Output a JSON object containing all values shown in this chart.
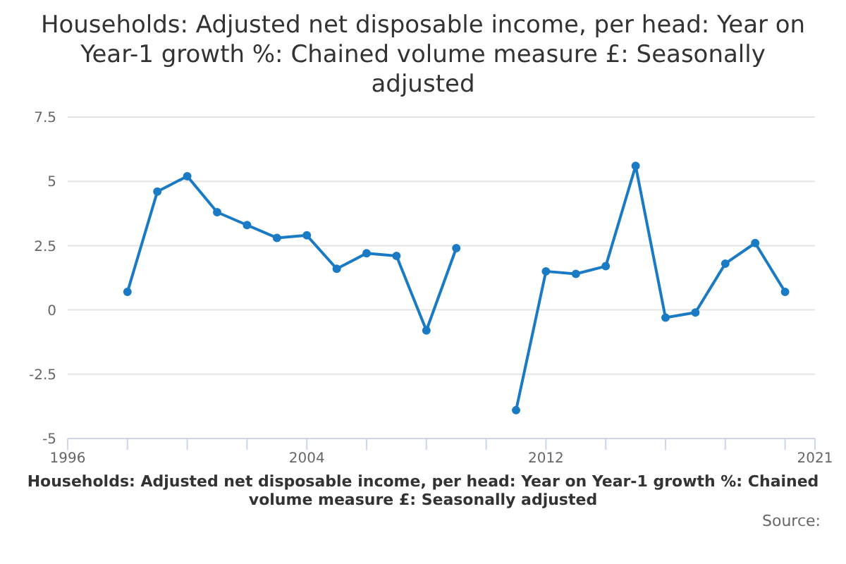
{
  "chart_data": {
    "type": "line",
    "title": "Households: Adjusted net disposable income, per head: Year on Year-1 growth %: Chained volume measure £: Seasonally adjusted",
    "xlabel": "Households: Adjusted net disposable income, per head: Year on Year-1 growth %: Chained volume measure £: Seasonally adjusted",
    "annotations": [
      "Source:"
    ],
    "x": [
      1998,
      1999,
      2000,
      2001,
      2002,
      2003,
      2004,
      2005,
      2006,
      2007,
      2008,
      2009,
      2010,
      2011,
      2012,
      2013,
      2014,
      2015,
      2016,
      2017,
      2018,
      2019,
      2020
    ],
    "series": [
      {
        "color": "#1a7bc4",
        "values": [
          0.7,
          4.6,
          5.2,
          3.8,
          3.3,
          2.8,
          2.9,
          1.6,
          2.2,
          2.1,
          -0.8,
          2.4,
          null,
          -3.9,
          1.5,
          1.4,
          1.7,
          5.6,
          -0.3,
          -0.1,
          1.8,
          2.6,
          0.7
        ]
      }
    ],
    "xlim": [
      1996,
      2021
    ],
    "xticks": [
      1996,
      {
        "value": 1998,
        "label": null
      },
      {
        "value": 2000,
        "label": null
      },
      {
        "value": 2002,
        "label": null
      },
      2004,
      {
        "value": 2006,
        "label": null
      },
      {
        "value": 2008,
        "label": null
      },
      {
        "value": 2010,
        "label": null
      },
      2012,
      {
        "value": 2014,
        "label": null
      },
      {
        "value": 2016,
        "label": null
      },
      {
        "value": 2018,
        "label": null
      },
      {
        "value": 2020,
        "label": null
      },
      2021
    ],
    "ylim": [
      -5,
      7.5
    ],
    "yticks": [
      -5,
      -2.5,
      0,
      2.5,
      5,
      7.5
    ],
    "grid": "y",
    "legend": false,
    "marker": "circle",
    "line_style": "solid"
  }
}
